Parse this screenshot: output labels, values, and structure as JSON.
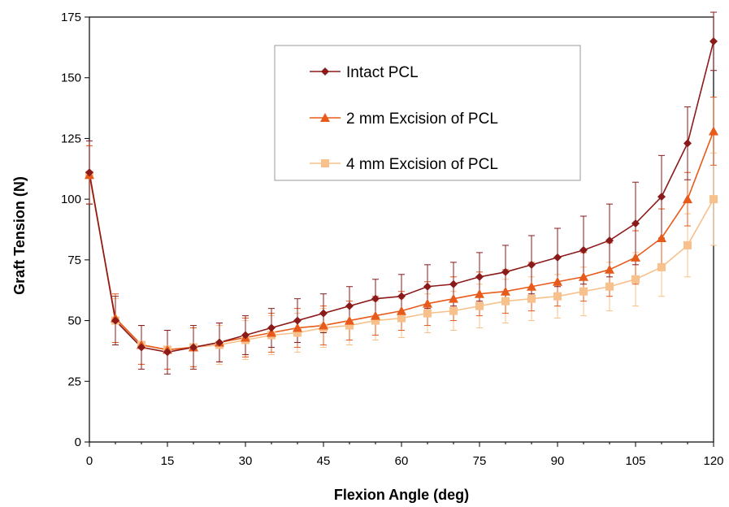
{
  "chart_data": {
    "type": "line",
    "title": "",
    "xlabel": "Flexion Angle (deg)",
    "ylabel": "Graft Tension (N)",
    "xlim": [
      0,
      120
    ],
    "ylim": [
      0,
      175
    ],
    "xticks": [
      0,
      15,
      30,
      45,
      60,
      75,
      90,
      105,
      120
    ],
    "yticks": [
      0,
      25,
      50,
      75,
      100,
      125,
      150,
      175
    ],
    "grid": false,
    "legend_position": "top-right",
    "x": [
      0,
      5,
      10,
      15,
      20,
      25,
      30,
      35,
      40,
      45,
      50,
      55,
      60,
      65,
      70,
      75,
      80,
      85,
      90,
      95,
      100,
      105,
      110,
      115,
      120
    ],
    "series": [
      {
        "name": "Intact PCL",
        "color": "#8b1a1a",
        "marker": "diamond",
        "values": [
          111,
          50,
          39,
          37,
          39,
          41,
          44,
          47,
          50,
          53,
          56,
          59,
          60,
          64,
          65,
          68,
          70,
          73,
          76,
          79,
          83,
          90,
          101,
          123,
          165
        ],
        "error": [
          13,
          10,
          9,
          9,
          9,
          8,
          8,
          8,
          9,
          8,
          8,
          8,
          9,
          9,
          9,
          10,
          11,
          12,
          12,
          14,
          15,
          17,
          17,
          15,
          12
        ]
      },
      {
        "name": "2 mm Excision of PCL",
        "color": "#e85a1a",
        "marker": "triangle",
        "values": [
          110,
          51,
          40,
          38,
          39,
          41,
          43,
          45,
          47,
          48,
          50,
          52,
          54,
          57,
          59,
          61,
          62,
          64,
          66,
          68,
          71,
          76,
          84,
          100,
          128
        ],
        "error": [
          12,
          10,
          8,
          8,
          8,
          8,
          8,
          8,
          8,
          8,
          8,
          8,
          8,
          9,
          9,
          9,
          9,
          10,
          10,
          10,
          11,
          11,
          12,
          11,
          14
        ]
      },
      {
        "name": "4 mm Excision of PCL",
        "color": "#f8c08a",
        "marker": "square",
        "values": [
          110,
          50,
          40,
          38,
          39,
          40,
          42,
          44,
          45,
          47,
          48,
          50,
          51,
          53,
          54,
          56,
          58,
          59,
          60,
          62,
          64,
          67,
          72,
          81,
          100
        ],
        "error": [
          12,
          9,
          8,
          8,
          8,
          8,
          8,
          8,
          8,
          8,
          8,
          8,
          8,
          8,
          8,
          9,
          9,
          9,
          9,
          10,
          10,
          11,
          12,
          13,
          19
        ]
      }
    ]
  }
}
